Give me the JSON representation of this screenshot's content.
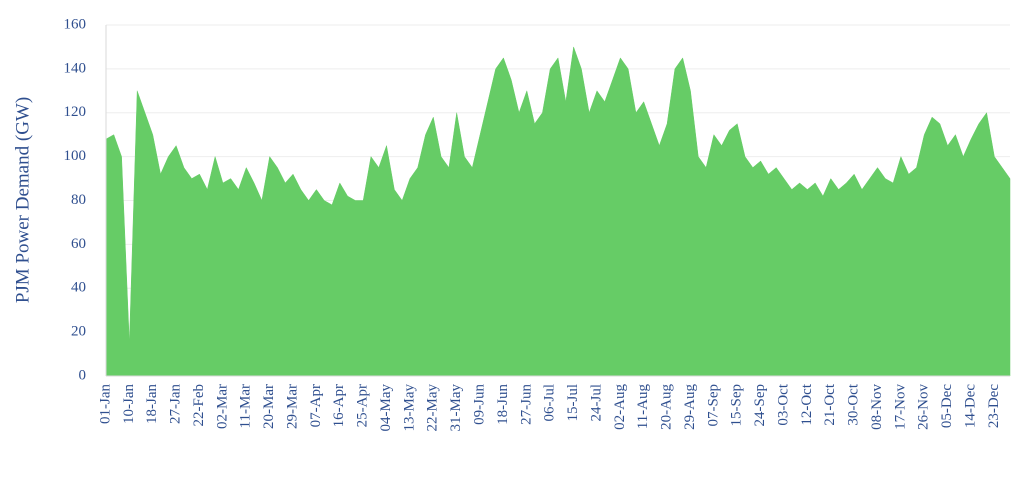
{
  "chart_data": {
    "type": "area",
    "y_label": "PJM Power Demand (GW)",
    "color": "#66cc66",
    "categories": [
      "01-Jan",
      null,
      null,
      "10-Jan",
      null,
      null,
      "18-Jan",
      null,
      null,
      "27-Jan",
      null,
      null,
      "22-Feb",
      null,
      null,
      "02-Mar",
      null,
      null,
      "11-Mar",
      null,
      null,
      "20-Mar",
      null,
      null,
      "29-Mar",
      null,
      null,
      "07-Apr",
      null,
      null,
      "16-Apr",
      null,
      null,
      "25-Apr",
      null,
      null,
      "04-May",
      null,
      null,
      "13-May",
      null,
      null,
      "22-May",
      null,
      null,
      "31-May",
      null,
      null,
      "09-Jun",
      null,
      null,
      "18-Jun",
      null,
      null,
      "27-Jun",
      null,
      null,
      "06-Jul",
      null,
      null,
      "15-Jul",
      null,
      null,
      "24-Jul",
      null,
      null,
      "02-Aug",
      null,
      null,
      "11-Aug",
      null,
      null,
      "20-Aug",
      null,
      null,
      "29-Aug",
      null,
      null,
      "07-Sep",
      null,
      null,
      "15-Sep",
      null,
      null,
      "24-Sep",
      null,
      null,
      "03-Oct",
      null,
      null,
      "12-Oct",
      null,
      null,
      "21-Oct",
      null,
      null,
      "30-Oct",
      null,
      null,
      "08-Nov",
      null,
      null,
      "17-Nov",
      null,
      null,
      "26-Nov",
      null,
      null,
      "05-Dec",
      null,
      null,
      "14-Dec",
      null,
      null,
      "23-Dec",
      null,
      null
    ],
    "values": [
      108,
      110,
      100,
      15,
      130,
      120,
      110,
      92,
      100,
      105,
      95,
      90,
      92,
      85,
      100,
      88,
      90,
      85,
      95,
      88,
      80,
      100,
      95,
      88,
      92,
      85,
      80,
      85,
      80,
      78,
      88,
      82,
      80,
      80,
      100,
      95,
      105,
      85,
      80,
      90,
      95,
      110,
      118,
      100,
      95,
      120,
      100,
      95,
      110,
      125,
      140,
      145,
      135,
      120,
      130,
      115,
      120,
      140,
      145,
      125,
      150,
      140,
      120,
      130,
      125,
      135,
      145,
      140,
      120,
      125,
      115,
      105,
      115,
      140,
      145,
      130,
      100,
      95,
      110,
      105,
      112,
      115,
      100,
      95,
      98,
      92,
      95,
      90,
      85,
      88,
      85,
      88,
      82,
      90,
      85,
      88,
      92,
      85,
      90,
      95,
      90,
      88,
      100,
      92,
      95,
      110,
      118,
      115,
      105,
      110,
      100,
      108,
      115,
      120,
      100,
      95,
      90
    ],
    "ylim": [
      0,
      160
    ],
    "yticks": [
      0,
      20,
      40,
      60,
      80,
      100,
      120,
      140,
      160
    ],
    "grid": true
  }
}
